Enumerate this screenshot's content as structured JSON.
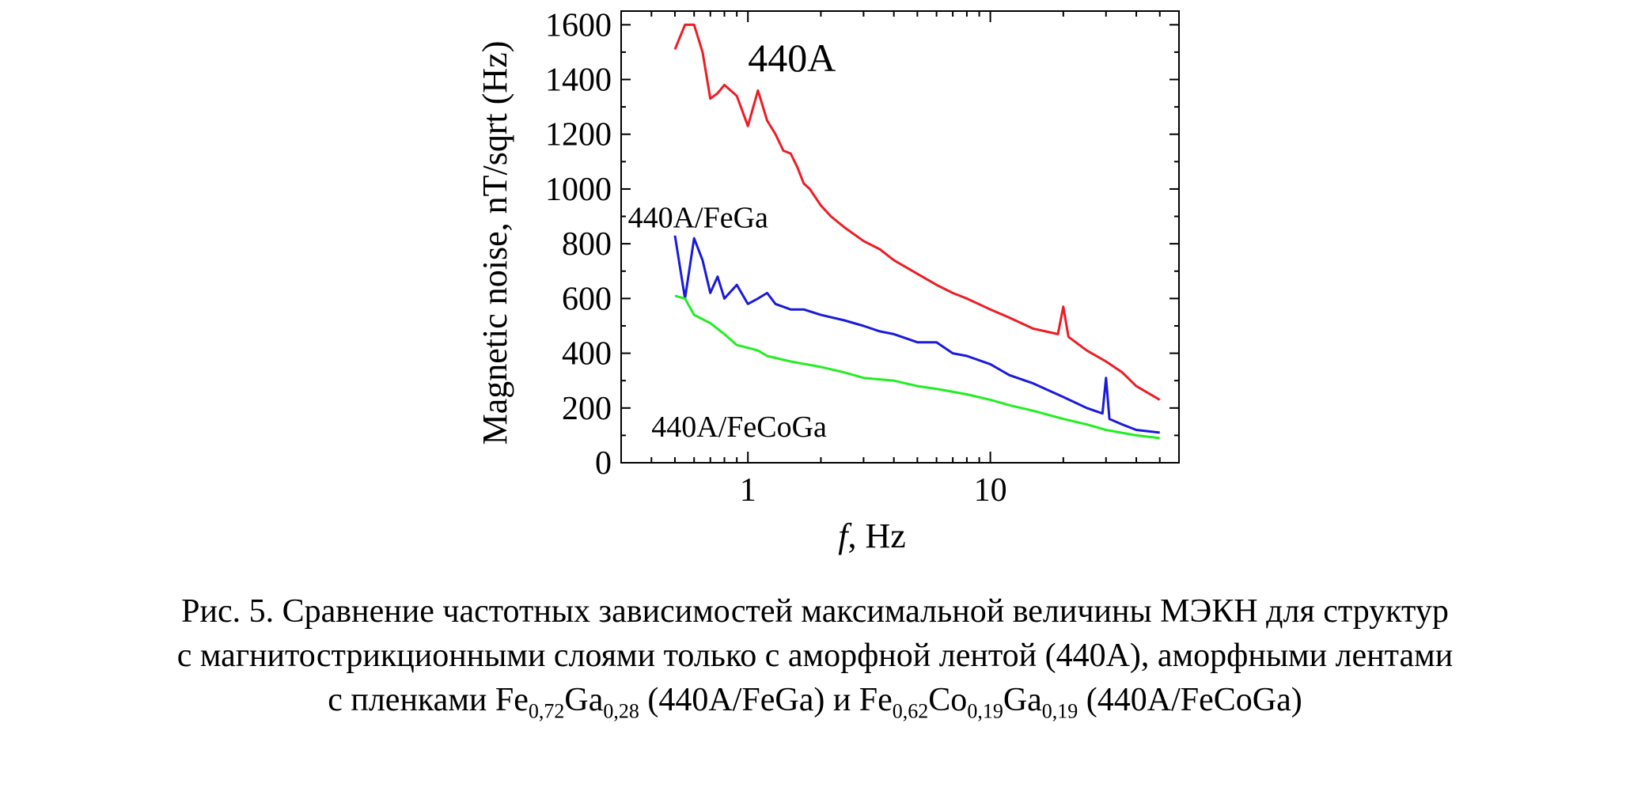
{
  "chart_data": {
    "type": "line",
    "xlabel_var": "f",
    "xlabel_rest": ", Hz",
    "ylabel": "Magnetic noise, nT/sqrt (Hz)",
    "x_scale": "log",
    "xlim": [
      0.3,
      60
    ],
    "ylim": [
      0,
      1650
    ],
    "x_ticks": [
      1,
      10
    ],
    "x_tick_labels": [
      "1",
      "10"
    ],
    "y_ticks": [
      0,
      200,
      400,
      600,
      800,
      1000,
      1200,
      1400,
      1600
    ],
    "y_tick_labels": [
      "0",
      "200",
      "400",
      "600",
      "800",
      "1000",
      "1200",
      "1400",
      "1600"
    ],
    "grid": false,
    "series": [
      {
        "name": "440A",
        "color": "#ee1c24",
        "x": [
          0.5,
          0.55,
          0.6,
          0.65,
          0.7,
          0.75,
          0.8,
          0.9,
          1.0,
          1.1,
          1.2,
          1.3,
          1.4,
          1.5,
          1.6,
          1.7,
          1.8,
          2.0,
          2.2,
          2.5,
          3.0,
          3.5,
          4.0,
          5.0,
          6.0,
          7.0,
          8.0,
          10.0,
          12.0,
          15.0,
          19.0,
          20.0,
          21.0,
          25.0,
          30.0,
          35.0,
          40.0,
          50.0
        ],
        "y": [
          1510,
          1600,
          1600,
          1500,
          1330,
          1350,
          1380,
          1340,
          1230,
          1360,
          1250,
          1200,
          1140,
          1130,
          1080,
          1020,
          1000,
          940,
          900,
          860,
          810,
          780,
          740,
          690,
          650,
          620,
          600,
          560,
          530,
          490,
          470,
          570,
          460,
          410,
          370,
          330,
          280,
          230
        ]
      },
      {
        "name": "440A/FeGa",
        "color": "#1a1adc",
        "x": [
          0.5,
          0.55,
          0.6,
          0.65,
          0.7,
          0.75,
          0.8,
          0.9,
          1.0,
          1.1,
          1.2,
          1.3,
          1.5,
          1.7,
          2.0,
          2.5,
          3.0,
          3.5,
          4.0,
          5.0,
          6.0,
          7.0,
          8.0,
          10.0,
          12.0,
          15.0,
          20.0,
          25.0,
          29.0,
          30.0,
          31.0,
          35.0,
          40.0,
          50.0
        ],
        "y": [
          830,
          600,
          820,
          740,
          620,
          680,
          600,
          650,
          580,
          600,
          620,
          580,
          560,
          560,
          540,
          520,
          500,
          480,
          470,
          440,
          440,
          400,
          390,
          360,
          320,
          290,
          240,
          200,
          180,
          310,
          160,
          140,
          120,
          110
        ]
      },
      {
        "name": "440A/FeCoGa",
        "color": "#22ee22",
        "x": [
          0.5,
          0.55,
          0.6,
          0.7,
          0.8,
          0.9,
          1.0,
          1.1,
          1.2,
          1.5,
          2.0,
          2.5,
          3.0,
          4.0,
          5.0,
          6.0,
          8.0,
          10.0,
          12.0,
          15.0,
          20.0,
          25.0,
          30.0,
          40.0,
          50.0
        ],
        "y": [
          610,
          600,
          540,
          510,
          470,
          430,
          420,
          410,
          390,
          370,
          350,
          330,
          310,
          300,
          280,
          270,
          250,
          230,
          210,
          190,
          160,
          140,
          120,
          100,
          90
        ]
      }
    ],
    "annotations": [
      {
        "text": "440A",
        "x": 1.0,
        "y": 1430
      },
      {
        "text": "440A/FeGa",
        "x": 0.32,
        "y": 860
      },
      {
        "text": "440A/FeCoGa",
        "x": 0.4,
        "y": 95
      }
    ]
  },
  "caption": {
    "line1": "Рис. 5. Сравнение частотных зависимостей максимальной величины МЭКН для структур",
    "line2": "с магнитострикционными слоями только с аморфной лентой (440A), аморфными лентами",
    "line3_a": "с пленками Fe",
    "line3_sub1": "0,72",
    "line3_b": "Ga",
    "line3_sub2": "0,28",
    "line3_c": " (440A/FeGa) и Fe",
    "line3_sub3": "0,62",
    "line3_d": "Co",
    "line3_sub4": "0,19",
    "line3_e": "Ga",
    "line3_sub5": "0,19",
    "line3_f": " (440A/FeCoGa)"
  }
}
